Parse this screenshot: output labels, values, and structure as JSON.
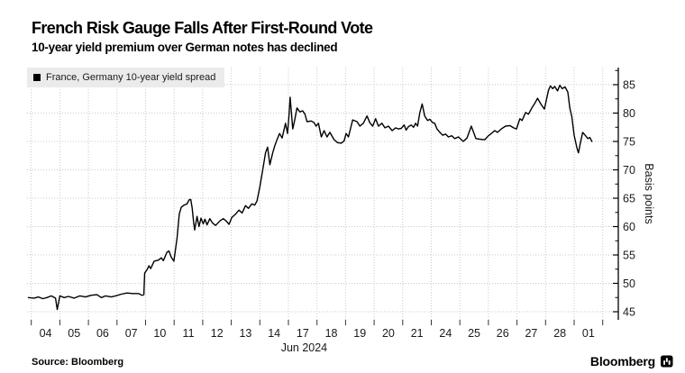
{
  "header": {
    "title": "French Risk Gauge Falls After First-Round Vote",
    "subtitle": "10-year yield premium over German notes has declined"
  },
  "legend": {
    "label": "France, Germany 10-year yield spread"
  },
  "footer": {
    "source_label": "Source: Bloomberg",
    "brand": "Bloomberg"
  },
  "colors": {
    "background": "#ffffff",
    "grid": "#c9c9c9",
    "axis": "#000000",
    "tick": "#333333",
    "text": "#1a1a1a",
    "legend_bg": "#ebebeb",
    "line": "#000000"
  },
  "chart_data": {
    "type": "line",
    "title": "French Risk Gauge Falls After First-Round Vote",
    "subtitle": "10-year yield premium over German notes has declined",
    "ylabel": "Basis points",
    "ylim": [
      45,
      85
    ],
    "y_ticks": [
      45,
      50,
      55,
      60,
      65,
      70,
      75,
      80,
      85
    ],
    "y_minor_tick_step": 2.5,
    "grid": true,
    "legend_position": "top-left",
    "x_axis": {
      "unit": "trading days, June-July 2024",
      "tick_labels": [
        "04",
        "05",
        "06",
        "07",
        "10",
        "11",
        "12",
        "13",
        "14",
        "17",
        "18",
        "19",
        "20",
        "21",
        "24",
        "25",
        "26",
        "27",
        "28",
        "01"
      ],
      "month_label": "Jun 2024"
    },
    "series": [
      {
        "name": "France, Germany 10-year yield spread",
        "color": "#000000",
        "x_unit_note": "x = trading-day index; integer i = start of day i (0 = Jun 4, 19 = Jul 1); day label centered at i+0.5; y = basis points",
        "points": [
          [
            -0.1,
            47.5
          ],
          [
            0.1,
            47.4
          ],
          [
            0.25,
            47.6
          ],
          [
            0.4,
            47.3
          ],
          [
            0.55,
            47.5
          ],
          [
            0.7,
            47.8
          ],
          [
            0.85,
            47.4
          ],
          [
            0.91,
            45.4
          ],
          [
            1.0,
            47.8
          ],
          [
            1.15,
            47.5
          ],
          [
            1.3,
            47.7
          ],
          [
            1.5,
            47.4
          ],
          [
            1.7,
            47.8
          ],
          [
            1.9,
            47.6
          ],
          [
            2.1,
            47.9
          ],
          [
            2.3,
            48.0
          ],
          [
            2.45,
            47.5
          ],
          [
            2.6,
            47.8
          ],
          [
            2.8,
            47.6
          ],
          [
            2.95,
            47.8
          ],
          [
            3.15,
            48.1
          ],
          [
            3.35,
            48.3
          ],
          [
            3.55,
            48.2
          ],
          [
            3.75,
            48.2
          ],
          [
            3.88,
            47.9
          ],
          [
            3.94,
            48.0
          ],
          [
            3.97,
            51.8
          ],
          [
            4.05,
            52.4
          ],
          [
            4.12,
            53.1
          ],
          [
            4.18,
            52.6
          ],
          [
            4.3,
            53.9
          ],
          [
            4.45,
            54.1
          ],
          [
            4.55,
            54.5
          ],
          [
            4.62,
            54.0
          ],
          [
            4.75,
            55.5
          ],
          [
            4.82,
            55.7
          ],
          [
            4.9,
            54.6
          ],
          [
            4.99,
            53.9
          ],
          [
            5.1,
            57.9
          ],
          [
            5.18,
            62.2
          ],
          [
            5.25,
            63.4
          ],
          [
            5.35,
            63.8
          ],
          [
            5.45,
            64.0
          ],
          [
            5.52,
            64.7
          ],
          [
            5.58,
            64.8
          ],
          [
            5.63,
            63.3
          ],
          [
            5.68,
            60.8
          ],
          [
            5.72,
            59.4
          ],
          [
            5.8,
            61.8
          ],
          [
            5.87,
            60.0
          ],
          [
            5.94,
            61.5
          ],
          [
            6.02,
            60.5
          ],
          [
            6.08,
            61.3
          ],
          [
            6.15,
            60.3
          ],
          [
            6.25,
            61.4
          ],
          [
            6.35,
            60.6
          ],
          [
            6.45,
            60.2
          ],
          [
            6.6,
            61.0
          ],
          [
            6.72,
            61.4
          ],
          [
            6.82,
            61.0
          ],
          [
            6.92,
            60.4
          ],
          [
            7.02,
            61.6
          ],
          [
            7.15,
            62.2
          ],
          [
            7.27,
            62.9
          ],
          [
            7.38,
            62.4
          ],
          [
            7.5,
            63.7
          ],
          [
            7.6,
            63.2
          ],
          [
            7.72,
            64.0
          ],
          [
            7.82,
            63.8
          ],
          [
            7.9,
            64.5
          ],
          [
            8.0,
            67.0
          ],
          [
            8.1,
            70.0
          ],
          [
            8.2,
            73.0
          ],
          [
            8.27,
            74.0
          ],
          [
            8.35,
            70.9
          ],
          [
            8.45,
            73.0
          ],
          [
            8.52,
            74.2
          ],
          [
            8.6,
            75.3
          ],
          [
            8.69,
            76.4
          ],
          [
            8.78,
            75.6
          ],
          [
            8.9,
            78.2
          ],
          [
            8.97,
            76.4
          ],
          [
            9.02,
            79.5
          ],
          [
            9.06,
            82.8
          ],
          [
            9.15,
            77.2
          ],
          [
            9.22,
            78.8
          ],
          [
            9.3,
            80.9
          ],
          [
            9.4,
            80.2
          ],
          [
            9.5,
            80.4
          ],
          [
            9.58,
            79.8
          ],
          [
            9.65,
            78.5
          ],
          [
            9.8,
            78.6
          ],
          [
            9.9,
            78.3
          ],
          [
            9.97,
            77.7
          ],
          [
            10.05,
            78.2
          ],
          [
            10.15,
            75.8
          ],
          [
            10.25,
            76.9
          ],
          [
            10.35,
            75.8
          ],
          [
            10.45,
            76.6
          ],
          [
            10.6,
            75.3
          ],
          [
            10.72,
            74.8
          ],
          [
            10.85,
            74.7
          ],
          [
            10.95,
            75.1
          ],
          [
            11.02,
            76.4
          ],
          [
            11.1,
            75.8
          ],
          [
            11.25,
            78.8
          ],
          [
            11.4,
            78.5
          ],
          [
            11.5,
            77.7
          ],
          [
            11.62,
            78.2
          ],
          [
            11.75,
            79.5
          ],
          [
            11.85,
            78.3
          ],
          [
            11.95,
            77.7
          ],
          [
            12.05,
            79.0
          ],
          [
            12.15,
            77.7
          ],
          [
            12.27,
            78.2
          ],
          [
            12.38,
            77.4
          ],
          [
            12.5,
            77.7
          ],
          [
            12.63,
            76.9
          ],
          [
            12.75,
            77.4
          ],
          [
            12.85,
            77.2
          ],
          [
            12.95,
            77.3
          ],
          [
            13.05,
            77.9
          ],
          [
            13.12,
            77.0
          ],
          [
            13.2,
            77.6
          ],
          [
            13.3,
            77.9
          ],
          [
            13.38,
            77.5
          ],
          [
            13.45,
            78.2
          ],
          [
            13.52,
            77.7
          ],
          [
            13.6,
            80.1
          ],
          [
            13.68,
            81.6
          ],
          [
            13.77,
            79.5
          ],
          [
            13.87,
            78.7
          ],
          [
            13.95,
            78.9
          ],
          [
            14.05,
            78.3
          ],
          [
            14.12,
            78.2
          ],
          [
            14.2,
            77.2
          ],
          [
            14.3,
            76.6
          ],
          [
            14.4,
            76.1
          ],
          [
            14.5,
            76.3
          ],
          [
            14.6,
            75.8
          ],
          [
            14.72,
            76.0
          ],
          [
            14.82,
            75.5
          ],
          [
            14.95,
            75.8
          ],
          [
            15.12,
            75.0
          ],
          [
            15.25,
            75.6
          ],
          [
            15.4,
            77.7
          ],
          [
            15.56,
            75.5
          ],
          [
            15.7,
            75.4
          ],
          [
            15.87,
            75.3
          ],
          [
            16.0,
            76.0
          ],
          [
            16.1,
            76.4
          ],
          [
            16.22,
            76.9
          ],
          [
            16.32,
            76.6
          ],
          [
            16.45,
            77.2
          ],
          [
            16.6,
            77.7
          ],
          [
            16.75,
            77.8
          ],
          [
            16.88,
            77.4
          ],
          [
            16.98,
            77.2
          ],
          [
            17.1,
            79.0
          ],
          [
            17.18,
            78.7
          ],
          [
            17.3,
            80.1
          ],
          [
            17.4,
            79.8
          ],
          [
            17.52,
            80.9
          ],
          [
            17.62,
            81.7
          ],
          [
            17.72,
            82.6
          ],
          [
            17.85,
            81.5
          ],
          [
            17.96,
            80.7
          ],
          [
            18.1,
            84.0
          ],
          [
            18.17,
            84.8
          ],
          [
            18.25,
            84.3
          ],
          [
            18.32,
            84.7
          ],
          [
            18.42,
            83.9
          ],
          [
            18.5,
            84.9
          ],
          [
            18.58,
            84.3
          ],
          [
            18.68,
            84.6
          ],
          [
            18.78,
            83.7
          ],
          [
            18.85,
            80.9
          ],
          [
            18.92,
            79.3
          ],
          [
            19.0,
            76.1
          ],
          [
            19.1,
            73.8
          ],
          [
            19.15,
            73.0
          ],
          [
            19.22,
            74.8
          ],
          [
            19.3,
            76.6
          ],
          [
            19.4,
            76.0
          ],
          [
            19.48,
            75.5
          ],
          [
            19.55,
            75.7
          ],
          [
            19.62,
            75.0
          ]
        ]
      }
    ]
  }
}
